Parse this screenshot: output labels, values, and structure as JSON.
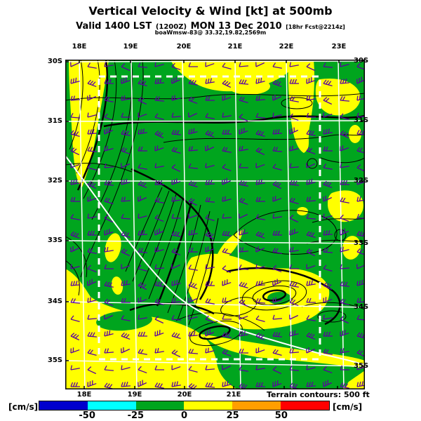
{
  "title": "Vertical Velocity & Wind [kt] at 500mb",
  "valid_line": {
    "prefix": "Valid 1400 LST",
    "init_time": "(1200Z)",
    "date": "MON 13 Dec 2010",
    "forecast": "[18hr Fcst@2214z]"
  },
  "station_line": "boaWmsw-83@ 33.32,19.82,2569m",
  "axes": {
    "top": [
      "18E",
      "19E",
      "20E",
      "21E",
      "22E",
      "23E"
    ],
    "bottom": [
      "18E",
      "19E",
      "20E",
      "21E"
    ],
    "left": [
      "30S",
      "31S",
      "32S",
      "33S",
      "34S",
      "35S"
    ],
    "right": [
      "30S",
      "31S",
      "32S",
      "33S",
      "34S",
      "35S"
    ]
  },
  "legend": {
    "terrain_note": "Terrain contours: 500 ft"
  },
  "colorbar": {
    "units_left": "[cm/s]",
    "units_right": "[cm/s]",
    "tick_labels": [
      "-50",
      "-25",
      "0",
      "25",
      "50"
    ],
    "segment_colors": [
      "#0000cd",
      "#00ffff",
      "#00a51e",
      "#ffff00",
      "#ff9e00",
      "#ff0000"
    ]
  },
  "map_colors": {
    "positive_fill": "#ffff00",
    "negative_fill": "#00a51e",
    "wind_barb": "#5a00a0",
    "grid_line": "#ffffff",
    "coastline": "#ffffff",
    "contour": "#000000",
    "frame": "#000000"
  }
}
